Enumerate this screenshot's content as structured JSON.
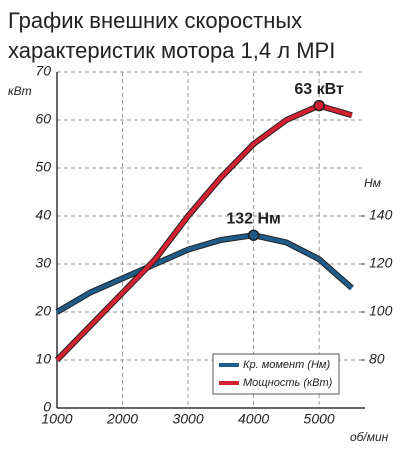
{
  "chart_data": {
    "type": "line",
    "title": [
      "График внешних скоростных",
      "характеристик мотора 1,4 л MPI"
    ],
    "y_label": "кВт",
    "y2_label": "Нм",
    "x_label": "об/мин",
    "x": [
      1000,
      1500,
      2000,
      2500,
      3000,
      3500,
      4000,
      4500,
      5000,
      5500
    ],
    "xlim": [
      1000,
      5700
    ],
    "xticks": [
      1000,
      2000,
      3000,
      4000,
      5000
    ],
    "ylim": [
      0,
      70
    ],
    "yticks": [
      0,
      10,
      20,
      30,
      40,
      50,
      60,
      70
    ],
    "y2lim": [
      60,
      200
    ],
    "y2ticks": [
      80,
      100,
      120,
      140
    ],
    "grid": true,
    "legend": "lower right",
    "series": [
      {
        "name": "Кр. момент (Нм)",
        "color": "#1f5c8a",
        "axis": "y2",
        "values": [
          100,
          108,
          114,
          120,
          126,
          130,
          132,
          129,
          122,
          110
        ]
      },
      {
        "name": "Мощность (кВт)",
        "color": "#d42030",
        "values": [
          10,
          17,
          24,
          31,
          40,
          48,
          55,
          60,
          63,
          61
        ]
      }
    ],
    "annotations": [
      {
        "text": "132 Нм",
        "series": 0,
        "index": 6
      },
      {
        "text": "63 кВт",
        "series": 1,
        "index": 8
      }
    ]
  }
}
